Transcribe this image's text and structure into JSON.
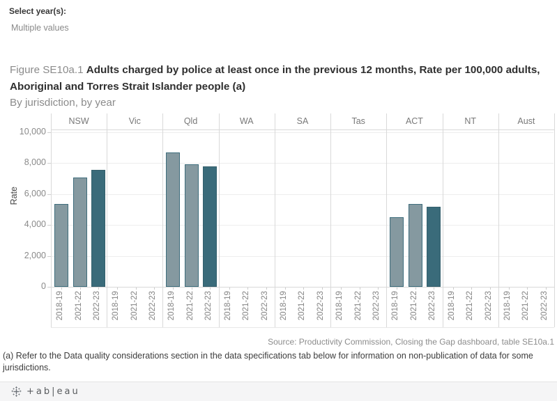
{
  "filter": {
    "label": "Select year(s):",
    "value": "Multiple values"
  },
  "title": {
    "prefix": "Figure SE10a.1",
    "main": "Adults charged by police at least once in the previous 12 months, Rate per 100,000 adults, Aboriginal and Torres Strait Islander people (a)",
    "subtitle": "By jurisdiction, by year"
  },
  "chart_data": {
    "type": "bar",
    "title": "Adults charged by police at least once in the previous 12 months, Rate per 100,000 adults, Aboriginal and Torres Strait Islander people (a)",
    "subtitle": "By jurisdiction, by year",
    "ylabel": "Rate",
    "xlabel": "",
    "ylim": [
      0,
      10000
    ],
    "yticks": [
      0,
      2000,
      4000,
      6000,
      8000,
      10000
    ],
    "ytick_labels": [
      "0",
      "2,000",
      "4,000",
      "6,000",
      "8,000",
      "10,000"
    ],
    "grid": true,
    "legend": false,
    "categories": [
      "NSW",
      "Vic",
      "Qld",
      "WA",
      "SA",
      "Tas",
      "ACT",
      "NT",
      "Aust"
    ],
    "year_labels": [
      "2018-19",
      "2021-22",
      "2022-23"
    ],
    "series": [
      {
        "name": "2018-19",
        "fill": "#8599a0",
        "stroke": "#3e6d7c",
        "values": [
          5350,
          null,
          8680,
          null,
          null,
          null,
          4500,
          null,
          null
        ]
      },
      {
        "name": "2021-22",
        "fill": "#8599a0",
        "stroke": "#3e6d7c",
        "values": [
          7080,
          null,
          7950,
          null,
          null,
          null,
          5370,
          null,
          null
        ]
      },
      {
        "name": "2022-23",
        "fill": "#3a6b7a",
        "stroke": "#35606d",
        "values": [
          7570,
          null,
          7800,
          null,
          null,
          null,
          5200,
          null,
          null
        ]
      }
    ],
    "source": "Source: Productivity Commission, Closing the Gap dashboard, table SE10a.1"
  },
  "footnote": "(a) Refer to the Data quality considerations section in the data specifications tab below for information on non-publication of data for some jurisdictions.",
  "footer": {
    "wordmark": "+ab|eau"
  },
  "colors": {
    "bar_light": "#8599a0",
    "bar_dark": "#3a6b7a",
    "bar_stroke": "#3e6d7c",
    "gridline": "#ededed",
    "separator": "#d9d9d9",
    "axis_text": "#8a8a8a"
  }
}
